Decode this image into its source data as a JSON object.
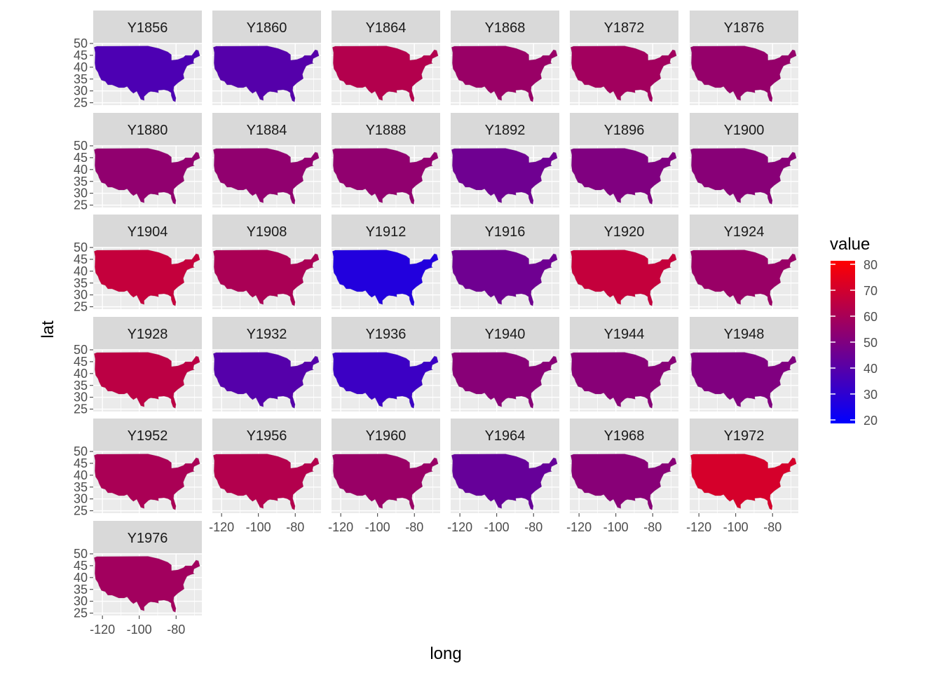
{
  "chart_data": {
    "type": "map",
    "facet_labels": [
      "Y1856",
      "Y1860",
      "Y1864",
      "Y1868",
      "Y1872",
      "Y1876",
      "Y1880",
      "Y1884",
      "Y1888",
      "Y1892",
      "Y1896",
      "Y1900",
      "Y1904",
      "Y1908",
      "Y1912",
      "Y1916",
      "Y1920",
      "Y1924",
      "Y1928",
      "Y1932",
      "Y1936",
      "Y1940",
      "Y1944",
      "Y1948",
      "Y1952",
      "Y1956",
      "Y1960",
      "Y1964",
      "Y1968",
      "Y1972",
      "Y1976"
    ],
    "facet_mean_values": [
      38,
      40,
      62,
      56,
      58,
      55,
      54,
      54,
      54,
      46,
      50,
      52,
      66,
      60,
      28,
      46,
      66,
      56,
      64,
      40,
      34,
      52,
      52,
      50,
      60,
      62,
      56,
      44,
      52,
      70,
      58
    ],
    "missing_fill": "#6e6e6e",
    "xlabel": "long",
    "ylabel": "lat",
    "x_ticks": [
      "-120",
      "-100",
      "-80"
    ],
    "y_ticks": [
      "50",
      "45",
      "40",
      "35",
      "30",
      "25"
    ],
    "xlim": [
      -125,
      -66
    ],
    "ylim": [
      24,
      50
    ],
    "legend": {
      "title": "value",
      "range": [
        20,
        80
      ],
      "ticks": [
        "80",
        "70",
        "60",
        "50",
        "40",
        "30",
        "20"
      ],
      "low_color": "#0000ff",
      "high_color": "#ff0000",
      "position": "right"
    },
    "panel_background": "#ebebeb",
    "strip_background": "#d9d9d9",
    "grid": true
  }
}
